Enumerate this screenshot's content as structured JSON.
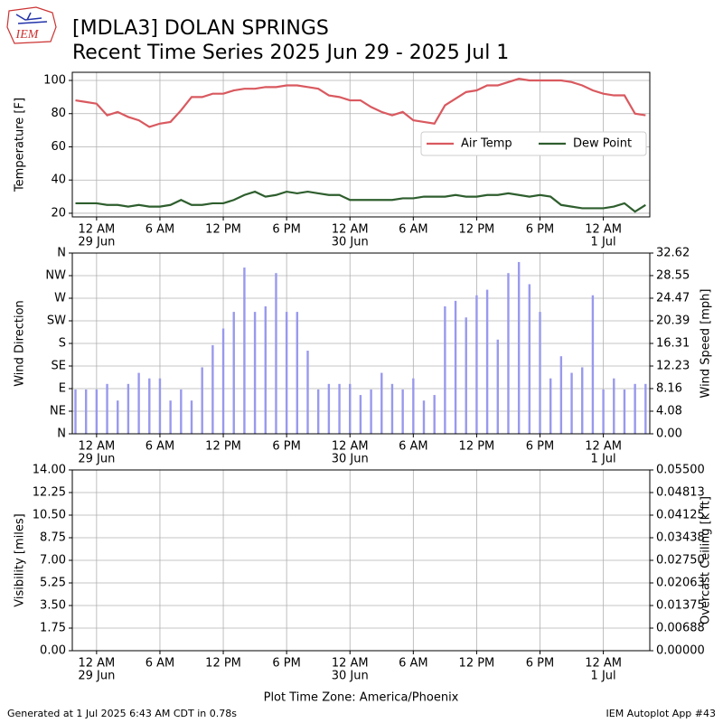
{
  "logo": "IEM",
  "footer": {
    "left": "Generated at 1 Jul 2025 6:43 AM CDT in 0.78s",
    "right": "IEM Autoplot App #43"
  },
  "chart_data": [
    {
      "type": "line",
      "title": "[MDLA3] DOLAN SPRINGS",
      "subtitle": "Recent Time Series 2025 Jun 29 - 2025 Jul 1",
      "ylabel": "Temperature [F]",
      "grid": true,
      "legend": "right",
      "x": [
        -2,
        -1,
        0,
        1,
        2,
        3,
        4,
        5,
        6,
        7,
        8,
        9,
        10,
        11,
        12,
        13,
        14,
        15,
        16,
        17,
        18,
        19,
        20,
        21,
        22,
        23,
        24,
        25,
        26,
        27,
        28,
        29,
        30,
        31,
        32,
        33,
        34,
        35,
        36,
        37,
        38,
        39,
        40,
        41,
        42,
        43,
        44,
        45,
        46,
        47,
        48,
        49,
        50,
        51,
        52
      ],
      "xlim": [
        -2.3,
        52.4
      ],
      "xticks": [
        {
          "value": 0,
          "label": [
            "12 AM",
            "29 Jun"
          ]
        },
        {
          "value": 6,
          "label": [
            "6 AM"
          ]
        },
        {
          "value": 12,
          "label": [
            "12 PM"
          ]
        },
        {
          "value": 18,
          "label": [
            "6 PM"
          ]
        },
        {
          "value": 24,
          "label": [
            "12 AM",
            "30 Jun"
          ]
        },
        {
          "value": 30,
          "label": [
            "6 AM"
          ]
        },
        {
          "value": 36,
          "label": [
            "12 PM"
          ]
        },
        {
          "value": 42,
          "label": [
            "6 PM"
          ]
        },
        {
          "value": 48,
          "label": [
            "12 AM",
            "1 Jul"
          ]
        }
      ],
      "ylim": [
        17.8,
        104.9
      ],
      "yticks": [
        20,
        40,
        60,
        80,
        100
      ],
      "series": [
        {
          "name": "Air Temp",
          "color": "#d9595f",
          "values": [
            88,
            87,
            86,
            79,
            81,
            78,
            76,
            72,
            74,
            75,
            82,
            90,
            90,
            92,
            92,
            94,
            95,
            95,
            96,
            96,
            97,
            97,
            96,
            95,
            91,
            90,
            88,
            88,
            84,
            81,
            79,
            81,
            76,
            75,
            74,
            85,
            89,
            93,
            94,
            97,
            97,
            99,
            101,
            100,
            100,
            100,
            100,
            99,
            97,
            94,
            92,
            91,
            91,
            80,
            79
          ]
        },
        {
          "name": "Dew Point",
          "color": "#2e5e2e",
          "values": [
            26,
            26,
            26,
            25,
            25,
            24,
            25,
            24,
            24,
            25,
            28,
            25,
            25,
            26,
            26,
            28,
            31,
            33,
            30,
            31,
            33,
            32,
            33,
            32,
            31,
            31,
            28,
            28,
            28,
            28,
            28,
            29,
            29,
            30,
            30,
            30,
            31,
            30,
            30,
            31,
            31,
            32,
            31,
            30,
            31,
            30,
            25,
            24,
            23,
            23,
            23,
            24,
            26,
            21,
            25
          ]
        }
      ]
    },
    {
      "type": "bar",
      "ylabel": "Wind Direction",
      "y2label": "Wind Speed [mph]",
      "grid": true,
      "x": [
        -2,
        -1,
        0,
        1,
        2,
        3,
        4,
        5,
        6,
        7,
        8,
        9,
        10,
        11,
        12,
        13,
        14,
        15,
        16,
        17,
        18,
        19,
        20,
        21,
        22,
        23,
        24,
        25,
        26,
        27,
        28,
        29,
        30,
        31,
        32,
        33,
        34,
        35,
        36,
        37,
        38,
        39,
        40,
        41,
        42,
        43,
        44,
        45,
        46,
        47,
        48,
        49,
        50,
        51,
        52
      ],
      "xlim": [
        -2.3,
        52.4
      ],
      "xticks": [
        {
          "value": 0,
          "label": [
            "12 AM",
            "29 Jun"
          ]
        },
        {
          "value": 6,
          "label": [
            "6 AM"
          ]
        },
        {
          "value": 12,
          "label": [
            "12 PM"
          ]
        },
        {
          "value": 18,
          "label": [
            "6 PM"
          ]
        },
        {
          "value": 24,
          "label": [
            "12 AM",
            "30 Jun"
          ]
        },
        {
          "value": 30,
          "label": [
            "6 AM"
          ]
        },
        {
          "value": 36,
          "label": [
            "12 PM"
          ]
        },
        {
          "value": 42,
          "label": [
            "6 PM"
          ]
        },
        {
          "value": 48,
          "label": [
            "12 AM",
            "1 Jul"
          ]
        }
      ],
      "ylim": [
        0,
        360
      ],
      "yticks": [
        {
          "value": 0,
          "label": "N"
        },
        {
          "value": 45,
          "label": "NE"
        },
        {
          "value": 90,
          "label": "E"
        },
        {
          "value": 135,
          "label": "SE"
        },
        {
          "value": 180,
          "label": "S"
        },
        {
          "value": 225,
          "label": "SW"
        },
        {
          "value": 270,
          "label": "W"
        },
        {
          "value": 315,
          "label": "NW"
        },
        {
          "value": 360,
          "label": "N"
        }
      ],
      "y2lim": [
        0,
        32.62
      ],
      "y2ticks": [
        {
          "value": 0,
          "label": "0.00"
        },
        4.08,
        8.16,
        12.23,
        16.31,
        20.39,
        24.47,
        28.55,
        32.62
      ],
      "series": [
        {
          "name": "Wind Speed",
          "color": "#9999ee",
          "axis": "y2",
          "values": [
            8,
            8,
            8,
            9,
            6,
            9,
            11,
            10,
            10,
            6,
            8,
            6,
            12,
            16,
            19,
            22,
            30,
            22,
            23,
            29,
            22,
            22,
            15,
            8,
            9,
            9,
            9,
            7,
            8,
            11,
            9,
            8,
            10,
            6,
            7,
            23,
            24,
            21,
            25,
            26,
            17,
            29,
            31,
            27,
            22,
            10,
            14,
            11,
            12,
            25,
            8,
            10,
            8,
            9,
            9
          ]
        }
      ]
    },
    {
      "type": "line",
      "ylabel": "Visibility [miles]",
      "y2label": "Overcast Ceiling [k ft]",
      "y2label_color": "green",
      "grid": true,
      "xlabel": "Plot Time Zone: America/Phoenix",
      "xlim": [
        -2.3,
        52.4
      ],
      "xticks": [
        {
          "value": 0,
          "label": [
            "12 AM",
            "29 Jun"
          ]
        },
        {
          "value": 6,
          "label": [
            "6 AM"
          ]
        },
        {
          "value": 12,
          "label": [
            "12 PM"
          ]
        },
        {
          "value": 18,
          "label": [
            "6 PM"
          ]
        },
        {
          "value": 24,
          "label": [
            "12 AM",
            "30 Jun"
          ]
        },
        {
          "value": 30,
          "label": [
            "6 AM"
          ]
        },
        {
          "value": 36,
          "label": [
            "12 PM"
          ]
        },
        {
          "value": 42,
          "label": [
            "6 PM"
          ]
        },
        {
          "value": 48,
          "label": [
            "12 AM",
            "1 Jul"
          ]
        }
      ],
      "ylim": [
        0,
        14
      ],
      "yticks": [
        {
          "value": 0,
          "label": "0.00"
        },
        1.75,
        {
          "value": 3.5,
          "label": "3.50"
        },
        5.25,
        {
          "value": 7,
          "label": "7.00"
        },
        8.75,
        {
          "value": 10.5,
          "label": "10.50"
        },
        12.25,
        {
          "value": 14,
          "label": "14.00"
        }
      ],
      "y2lim": [
        0,
        0.055
      ],
      "y2ticks": [
        {
          "value": 0,
          "label": "0.00000"
        },
        {
          "value": 0.006875,
          "label": "0.00688"
        },
        {
          "value": 0.01375,
          "label": "0.01375"
        },
        {
          "value": 0.020625,
          "label": "0.02063"
        },
        {
          "value": 0.0275,
          "label": "0.02750"
        },
        {
          "value": 0.034375,
          "label": "0.03438"
        },
        {
          "value": 0.04125,
          "label": "0.04125"
        },
        {
          "value": 0.048125,
          "label": "0.04813"
        },
        {
          "value": 0.055,
          "label": "0.05500"
        }
      ]
    }
  ]
}
